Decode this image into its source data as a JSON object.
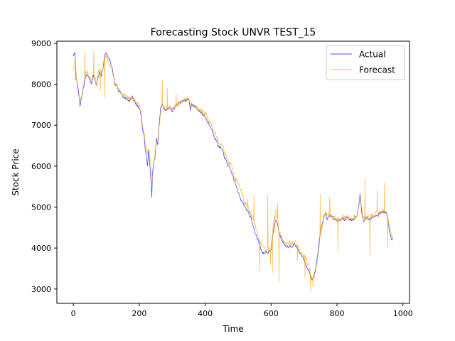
{
  "chart_data": {
    "type": "line",
    "title": "Forecasting Stock UNVR TEST_15",
    "xlabel": "Time",
    "ylabel": "Stock Price",
    "xlim": [
      -50,
      1020
    ],
    "ylim": [
      2650,
      9050
    ],
    "xticks": [
      0,
      200,
      400,
      600,
      800,
      1000
    ],
    "yticks": [
      3000,
      4000,
      5000,
      6000,
      7000,
      8000,
      9000
    ],
    "xtick_labels": [
      "0",
      "200",
      "400",
      "600",
      "800",
      "1000"
    ],
    "ytick_labels": [
      "3000",
      "4000",
      "5000",
      "6000",
      "7000",
      "8000",
      "9000"
    ],
    "grid": false,
    "legend_position": "top-right",
    "n_points": 971,
    "series": [
      {
        "name": "Actual",
        "color": "#0000ff",
        "anchors": [
          [
            0,
            8700
          ],
          [
            5,
            8750
          ],
          [
            8,
            8150
          ],
          [
            12,
            8000
          ],
          [
            16,
            7800
          ],
          [
            20,
            7450
          ],
          [
            25,
            7700
          ],
          [
            30,
            7900
          ],
          [
            35,
            8100
          ],
          [
            40,
            8250
          ],
          [
            45,
            8200
          ],
          [
            50,
            8100
          ],
          [
            55,
            8000
          ],
          [
            60,
            8250
          ],
          [
            65,
            8100
          ],
          [
            70,
            7950
          ],
          [
            75,
            8150
          ],
          [
            80,
            8300
          ],
          [
            85,
            8200
          ],
          [
            90,
            8400
          ],
          [
            95,
            8700
          ],
          [
            100,
            8800
          ],
          [
            105,
            8650
          ],
          [
            110,
            8600
          ],
          [
            115,
            8450
          ],
          [
            120,
            8300
          ],
          [
            125,
            8000
          ],
          [
            130,
            7950
          ],
          [
            140,
            7850
          ],
          [
            150,
            7700
          ],
          [
            160,
            7650
          ],
          [
            170,
            7600
          ],
          [
            180,
            7700
          ],
          [
            190,
            7500
          ],
          [
            200,
            7450
          ],
          [
            205,
            7250
          ],
          [
            210,
            6900
          ],
          [
            215,
            6700
          ],
          [
            220,
            6300
          ],
          [
            225,
            6000
          ],
          [
            228,
            6400
          ],
          [
            232,
            6000
          ],
          [
            236,
            5600
          ],
          [
            238,
            5200
          ],
          [
            240,
            5800
          ],
          [
            244,
            6100
          ],
          [
            248,
            6200
          ],
          [
            252,
            6700
          ],
          [
            256,
            6500
          ],
          [
            260,
            7000
          ],
          [
            265,
            7400
          ],
          [
            270,
            7550
          ],
          [
            275,
            7400
          ],
          [
            280,
            7350
          ],
          [
            290,
            7450
          ],
          [
            300,
            7350
          ],
          [
            310,
            7450
          ],
          [
            320,
            7550
          ],
          [
            330,
            7600
          ],
          [
            340,
            7600
          ],
          [
            350,
            7650
          ],
          [
            355,
            7400
          ],
          [
            360,
            7500
          ],
          [
            370,
            7450
          ],
          [
            380,
            7350
          ],
          [
            390,
            7300
          ],
          [
            400,
            7200
          ],
          [
            410,
            7050
          ],
          [
            420,
            6900
          ],
          [
            430,
            6700
          ],
          [
            440,
            6500
          ],
          [
            450,
            6400
          ],
          [
            460,
            6200
          ],
          [
            470,
            6000
          ],
          [
            480,
            5850
          ],
          [
            490,
            5600
          ],
          [
            500,
            5400
          ],
          [
            510,
            5150
          ],
          [
            520,
            5000
          ],
          [
            530,
            4900
          ],
          [
            540,
            4700
          ],
          [
            550,
            4400
          ],
          [
            560,
            4200
          ],
          [
            570,
            3950
          ],
          [
            580,
            3850
          ],
          [
            590,
            3900
          ],
          [
            600,
            4000
          ],
          [
            605,
            4300
          ],
          [
            610,
            4600
          ],
          [
            615,
            4700
          ],
          [
            620,
            4550
          ],
          [
            625,
            4350
          ],
          [
            630,
            4250
          ],
          [
            640,
            4100
          ],
          [
            650,
            4050
          ],
          [
            660,
            4050
          ],
          [
            670,
            4100
          ],
          [
            680,
            4000
          ],
          [
            690,
            3850
          ],
          [
            700,
            3700
          ],
          [
            710,
            3500
          ],
          [
            715,
            3450
          ],
          [
            720,
            3300
          ],
          [
            725,
            3250
          ],
          [
            730,
            3300
          ],
          [
            735,
            3500
          ],
          [
            740,
            3750
          ],
          [
            745,
            4100
          ],
          [
            750,
            4400
          ],
          [
            755,
            4600
          ],
          [
            760,
            4800
          ],
          [
            765,
            4850
          ],
          [
            770,
            4700
          ],
          [
            780,
            4800
          ],
          [
            790,
            4700
          ],
          [
            800,
            4650
          ],
          [
            810,
            4700
          ],
          [
            820,
            4700
          ],
          [
            830,
            4750
          ],
          [
            840,
            4700
          ],
          [
            850,
            4700
          ],
          [
            860,
            4750
          ],
          [
            865,
            5000
          ],
          [
            870,
            5300
          ],
          [
            875,
            4900
          ],
          [
            880,
            4650
          ],
          [
            890,
            4750
          ],
          [
            900,
            4700
          ],
          [
            910,
            4800
          ],
          [
            920,
            4800
          ],
          [
            930,
            4850
          ],
          [
            940,
            4900
          ],
          [
            950,
            4850
          ],
          [
            955,
            4650
          ],
          [
            960,
            4400
          ],
          [
            965,
            4200
          ],
          [
            970,
            4200
          ]
        ]
      },
      {
        "name": "Forecast",
        "color": "#ffa500",
        "anchors": [
          [
            0,
            8350
          ],
          [
            5,
            8550
          ],
          [
            8,
            8350
          ],
          [
            12,
            7950
          ],
          [
            16,
            7750
          ],
          [
            20,
            7600
          ],
          [
            25,
            7650
          ],
          [
            30,
            7950
          ],
          [
            35,
            8200
          ],
          [
            40,
            8300
          ],
          [
            45,
            8250
          ],
          [
            50,
            8150
          ],
          [
            55,
            8100
          ],
          [
            60,
            8300
          ],
          [
            65,
            8150
          ],
          [
            70,
            8000
          ],
          [
            75,
            8250
          ],
          [
            80,
            8350
          ],
          [
            85,
            8250
          ],
          [
            90,
            8450
          ],
          [
            95,
            8650
          ],
          [
            100,
            8700
          ],
          [
            105,
            8600
          ],
          [
            110,
            8500
          ],
          [
            115,
            8400
          ],
          [
            120,
            8250
          ],
          [
            125,
            8050
          ],
          [
            130,
            7950
          ],
          [
            140,
            7850
          ],
          [
            150,
            7750
          ],
          [
            160,
            7700
          ],
          [
            170,
            7650
          ],
          [
            180,
            7650
          ],
          [
            190,
            7550
          ],
          [
            200,
            7500
          ],
          [
            205,
            7350
          ],
          [
            210,
            7050
          ],
          [
            215,
            6800
          ],
          [
            220,
            6500
          ],
          [
            225,
            6300
          ],
          [
            228,
            6450
          ],
          [
            232,
            6250
          ],
          [
            236,
            6000
          ],
          [
            238,
            5800
          ],
          [
            240,
            5700
          ],
          [
            244,
            6000
          ],
          [
            248,
            6300
          ],
          [
            252,
            6600
          ],
          [
            256,
            6700
          ],
          [
            260,
            6950
          ],
          [
            265,
            7300
          ],
          [
            270,
            7500
          ],
          [
            275,
            7450
          ],
          [
            280,
            7400
          ],
          [
            290,
            7450
          ],
          [
            300,
            7400
          ],
          [
            310,
            7450
          ],
          [
            320,
            7500
          ],
          [
            330,
            7600
          ],
          [
            340,
            7650
          ],
          [
            350,
            7650
          ],
          [
            355,
            7500
          ],
          [
            360,
            7500
          ],
          [
            370,
            7450
          ],
          [
            380,
            7400
          ],
          [
            390,
            7350
          ],
          [
            400,
            7300
          ],
          [
            410,
            7150
          ],
          [
            420,
            7000
          ],
          [
            430,
            6800
          ],
          [
            440,
            6600
          ],
          [
            450,
            6550
          ],
          [
            460,
            6300
          ],
          [
            470,
            6100
          ],
          [
            480,
            6000
          ],
          [
            490,
            5700
          ],
          [
            500,
            5600
          ],
          [
            510,
            5400
          ],
          [
            520,
            5100
          ],
          [
            530,
            5000
          ],
          [
            540,
            4800
          ],
          [
            550,
            4600
          ],
          [
            560,
            4300
          ],
          [
            570,
            4100
          ],
          [
            580,
            3950
          ],
          [
            590,
            3950
          ],
          [
            600,
            4000
          ],
          [
            605,
            4400
          ],
          [
            610,
            4800
          ],
          [
            615,
            4900
          ],
          [
            620,
            4700
          ],
          [
            625,
            4400
          ],
          [
            630,
            4300
          ],
          [
            640,
            4150
          ],
          [
            650,
            4100
          ],
          [
            660,
            4100
          ],
          [
            670,
            4150
          ],
          [
            680,
            4050
          ],
          [
            690,
            3900
          ],
          [
            700,
            3800
          ],
          [
            710,
            3650
          ],
          [
            715,
            3550
          ],
          [
            720,
            3400
          ],
          [
            725,
            3250
          ],
          [
            730,
            3300
          ],
          [
            735,
            3450
          ],
          [
            740,
            3650
          ],
          [
            745,
            4000
          ],
          [
            750,
            4300
          ],
          [
            755,
            4500
          ],
          [
            760,
            4750
          ],
          [
            765,
            4900
          ],
          [
            770,
            4800
          ],
          [
            780,
            4800
          ],
          [
            790,
            4750
          ],
          [
            800,
            4700
          ],
          [
            810,
            4700
          ],
          [
            820,
            4750
          ],
          [
            830,
            4750
          ],
          [
            840,
            4700
          ],
          [
            850,
            4750
          ],
          [
            860,
            4750
          ],
          [
            865,
            4950
          ],
          [
            870,
            5200
          ],
          [
            875,
            5000
          ],
          [
            880,
            4700
          ],
          [
            890,
            4750
          ],
          [
            900,
            4750
          ],
          [
            910,
            4800
          ],
          [
            920,
            4850
          ],
          [
            930,
            4850
          ],
          [
            940,
            4900
          ],
          [
            950,
            4900
          ],
          [
            955,
            4750
          ],
          [
            960,
            4500
          ],
          [
            965,
            4300
          ],
          [
            970,
            4250
          ]
        ],
        "spikes": [
          [
            35,
            8800
          ],
          [
            62,
            8800
          ],
          [
            82,
            7850
          ],
          [
            95,
            7650
          ],
          [
            270,
            8100
          ],
          [
            285,
            7900
          ],
          [
            312,
            7750
          ],
          [
            528,
            5200
          ],
          [
            548,
            5300
          ],
          [
            565,
            3450
          ],
          [
            590,
            5300
          ],
          [
            598,
            3600
          ],
          [
            604,
            3400
          ],
          [
            612,
            4400
          ],
          [
            620,
            5100
          ],
          [
            624,
            3150
          ],
          [
            680,
            3700
          ],
          [
            703,
            3250
          ],
          [
            720,
            2950
          ],
          [
            727,
            3050
          ],
          [
            749,
            5300
          ],
          [
            778,
            5250
          ],
          [
            803,
            3900
          ],
          [
            885,
            5700
          ],
          [
            900,
            3800
          ],
          [
            922,
            5400
          ],
          [
            944,
            5600
          ],
          [
            954,
            4000
          ]
        ]
      }
    ]
  }
}
